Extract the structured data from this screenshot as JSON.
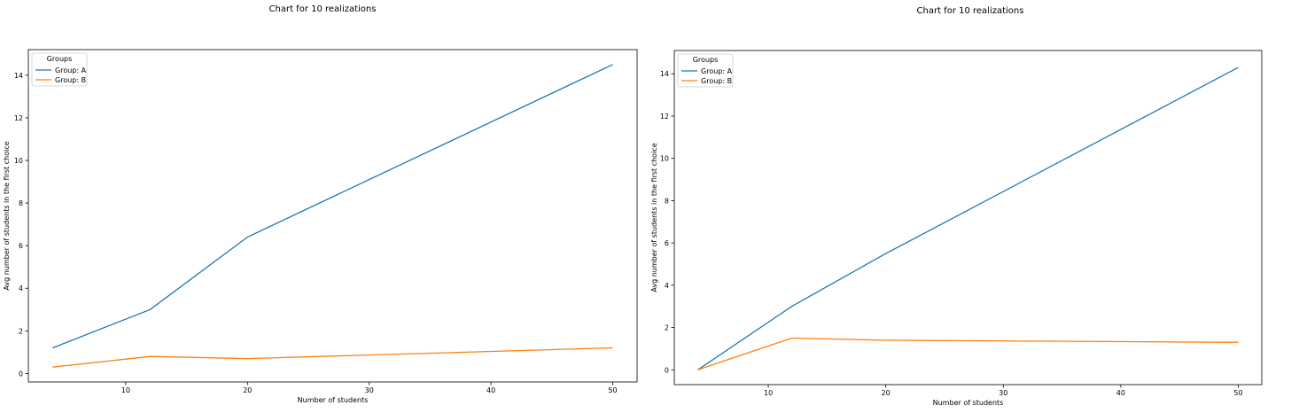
{
  "chart_data": [
    {
      "type": "line",
      "title": "Chart for 10 realizations",
      "xlabel": "Number of students",
      "ylabel": "Avg number of students in the first choice",
      "xlim": [
        2,
        52
      ],
      "ylim": [
        -0.4,
        15.2
      ],
      "xticks": [
        10,
        20,
        30,
        40,
        50
      ],
      "yticks": [
        0,
        2,
        4,
        6,
        8,
        10,
        12,
        14
      ],
      "grid": false,
      "legend": {
        "title": "Groups",
        "placement": "top-left"
      },
      "series": [
        {
          "name": "Group: A",
          "color": "#1f77b4",
          "x": [
            4,
            12,
            20,
            50
          ],
          "y": [
            1.2,
            3.0,
            6.4,
            14.5
          ]
        },
        {
          "name": "Group: B",
          "color": "#ff7f0e",
          "x": [
            4,
            12,
            20,
            50
          ],
          "y": [
            0.3,
            0.8,
            0.7,
            1.2
          ]
        }
      ]
    },
    {
      "type": "line",
      "title": "Chart for 10 realizations",
      "xlabel": "Number of students",
      "ylabel": "Avg number of students in the first choice",
      "xlim": [
        2,
        52
      ],
      "ylim": [
        -0.7,
        15.1
      ],
      "xticks": [
        10,
        20,
        30,
        40,
        50
      ],
      "yticks": [
        0,
        2,
        4,
        6,
        8,
        10,
        12,
        14
      ],
      "grid": false,
      "legend": {
        "title": "Groups",
        "placement": "top-left"
      },
      "series": [
        {
          "name": "Group: A",
          "color": "#1f77b4",
          "x": [
            4,
            12,
            20,
            50
          ],
          "y": [
            0.0,
            3.0,
            5.5,
            14.3
          ]
        },
        {
          "name": "Group: B",
          "color": "#ff7f0e",
          "x": [
            4,
            12,
            20,
            50
          ],
          "y": [
            0.0,
            1.5,
            1.4,
            1.3
          ]
        }
      ]
    }
  ]
}
